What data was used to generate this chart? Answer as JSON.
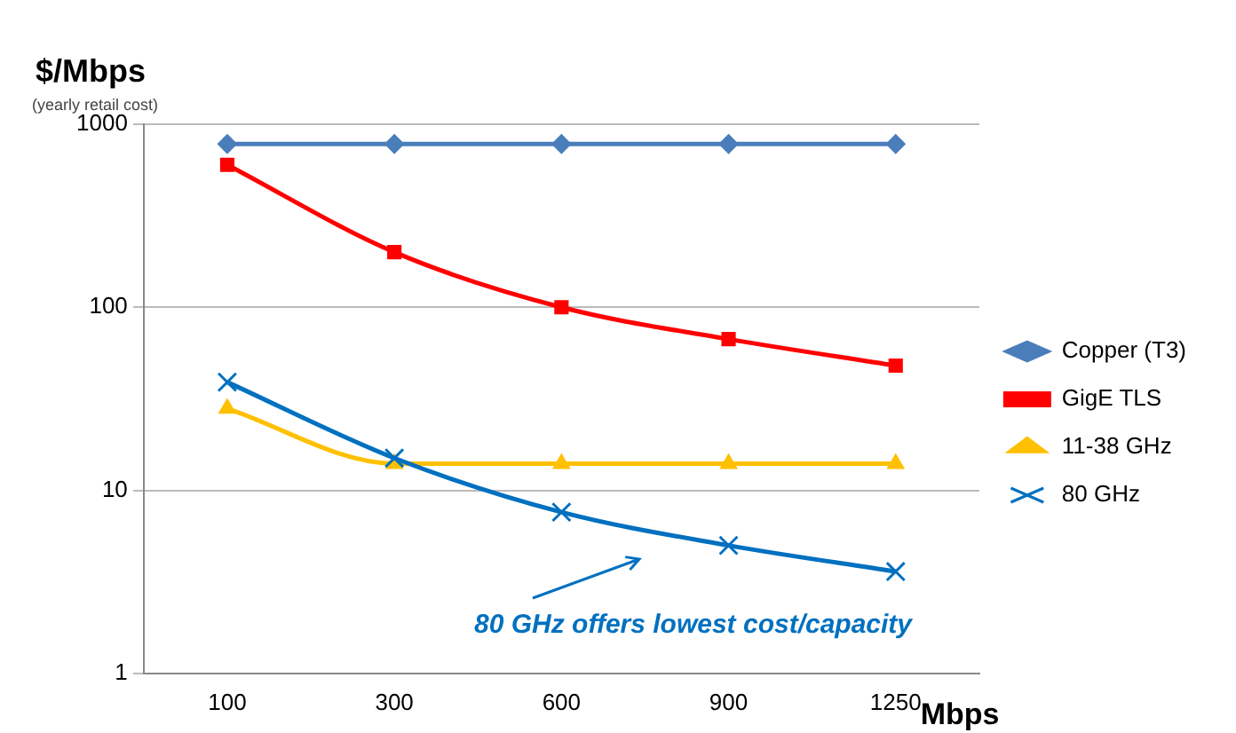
{
  "chart_data": {
    "type": "line",
    "ylabel": "$/Mbps",
    "subtitle": "(yearly retail cost)",
    "xlabel": "Mbps",
    "categories": [
      "100",
      "300",
      "600",
      "900",
      "1250"
    ],
    "series": [
      {
        "name": "Copper (T3)",
        "color": "#4a7ebb",
        "marker": "diamond",
        "values": [
          780,
          780,
          780,
          780,
          780
        ]
      },
      {
        "name": "GigE TLS",
        "color": "#ff0000",
        "marker": "square",
        "values": [
          600,
          200,
          100,
          67,
          48
        ]
      },
      {
        "name": "11-38 GHz",
        "color": "#ffc000",
        "marker": "triangle",
        "values": [
          28,
          14,
          14,
          14,
          14
        ]
      },
      {
        "name": "80 GHz",
        "color": "#0070c0",
        "marker": "cross",
        "values": [
          39,
          15,
          7.6,
          5,
          3.6
        ]
      }
    ],
    "log": "y",
    "ylim": [
      1,
      1000
    ],
    "yticks": [
      1,
      10,
      100,
      1000
    ],
    "grid": "y",
    "legend": "right",
    "line_style": "solid",
    "annotations": [
      {
        "text": "80 GHz offers lowest cost/capacity",
        "x": "900",
        "y": 5
      }
    ]
  }
}
